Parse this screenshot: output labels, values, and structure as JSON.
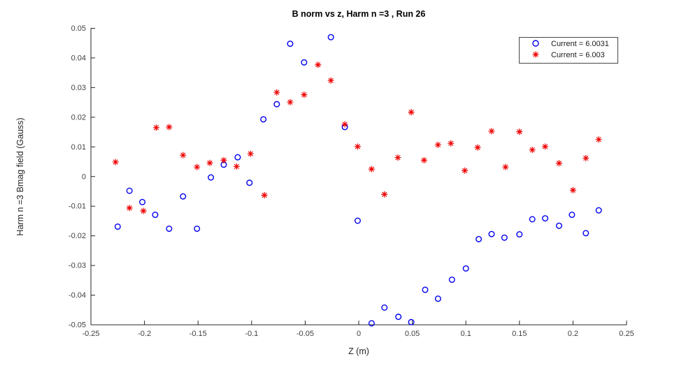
{
  "window": {
    "background": "#ffffff"
  },
  "chart_data": {
    "type": "scatter",
    "title": "B norm vs z, Harm n =3 , Run 26",
    "xlabel": "Z (m)",
    "ylabel": "Harm n =3 Bmag field (Gauss)",
    "xlim": [
      -0.25,
      0.25
    ],
    "ylim": [
      -0.05,
      0.05
    ],
    "grid": false,
    "legend_position": "top-right",
    "axis_color": "#262626",
    "xticks": [
      {
        "value": -0.25,
        "label": "-0.25"
      },
      {
        "value": -0.2,
        "label": "-0.2"
      },
      {
        "value": -0.15,
        "label": "-0.15"
      },
      {
        "value": -0.1,
        "label": "-0.1"
      },
      {
        "value": -0.05,
        "label": "-0.05"
      },
      {
        "value": 0,
        "label": "0"
      },
      {
        "value": 0.05,
        "label": "0.05"
      },
      {
        "value": 0.1,
        "label": "0.1"
      },
      {
        "value": 0.15,
        "label": "0.15"
      },
      {
        "value": 0.2,
        "label": "0.2"
      },
      {
        "value": 0.25,
        "label": "0.25"
      }
    ],
    "yticks": [
      {
        "value": -0.05,
        "label": "-0.05"
      },
      {
        "value": -0.04,
        "label": "-0.04"
      },
      {
        "value": -0.03,
        "label": "-0.03"
      },
      {
        "value": -0.02,
        "label": "-0.02"
      },
      {
        "value": -0.01,
        "label": "-0.01"
      },
      {
        "value": 0,
        "label": "0"
      },
      {
        "value": 0.01,
        "label": "0.01"
      },
      {
        "value": 0.02,
        "label": "0.02"
      },
      {
        "value": 0.03,
        "label": "0.03"
      },
      {
        "value": 0.04,
        "label": "0.04"
      },
      {
        "value": 0.05,
        "label": "0.05"
      }
    ],
    "series": [
      {
        "name": "Current = 6.0031",
        "marker": "circle",
        "color": "#0000EE",
        "points": [
          [
            -0.225,
            -0.0169
          ],
          [
            -0.214,
            -0.0048
          ],
          [
            -0.202,
            -0.0086
          ],
          [
            -0.19,
            -0.0129
          ],
          [
            -0.177,
            -0.0176
          ],
          [
            -0.164,
            -0.0067
          ],
          [
            -0.151,
            -0.0176
          ],
          [
            -0.138,
            -0.0003
          ],
          [
            -0.126,
            0.004
          ],
          [
            -0.113,
            0.0065
          ],
          [
            -0.102,
            -0.0021
          ],
          [
            -0.089,
            0.0193
          ],
          [
            -0.0765,
            0.0244
          ],
          [
            -0.064,
            0.0448
          ],
          [
            -0.051,
            0.0385
          ],
          [
            -0.026,
            0.047
          ],
          [
            -0.013,
            0.0167
          ],
          [
            -0.001,
            -0.0149
          ],
          [
            0.012,
            -0.0495
          ],
          [
            0.024,
            -0.0442
          ],
          [
            0.037,
            -0.0473
          ],
          [
            0.049,
            -0.0491
          ],
          [
            0.062,
            -0.0382
          ],
          [
            0.074,
            -0.0412
          ],
          [
            0.087,
            -0.0348
          ],
          [
            0.1,
            -0.031
          ],
          [
            0.112,
            -0.0211
          ],
          [
            0.124,
            -0.0194
          ],
          [
            0.136,
            -0.0206
          ],
          [
            0.15,
            -0.0195
          ],
          [
            0.162,
            -0.0144
          ],
          [
            0.174,
            -0.0141
          ],
          [
            0.187,
            -0.0166
          ],
          [
            0.199,
            -0.0129
          ],
          [
            0.212,
            -0.0191
          ],
          [
            0.224,
            -0.0114
          ]
        ]
      },
      {
        "name": "Current = 6.003",
        "marker": "asterisk",
        "color": "#EE0000",
        "points": [
          [
            -0.227,
            0.0049
          ],
          [
            -0.214,
            -0.0106
          ],
          [
            -0.201,
            -0.0116
          ],
          [
            -0.189,
            0.0165
          ],
          [
            -0.177,
            0.0167
          ],
          [
            -0.164,
            0.0072
          ],
          [
            -0.151,
            0.0032
          ],
          [
            -0.139,
            0.0046
          ],
          [
            -0.126,
            0.0055
          ],
          [
            -0.114,
            0.0034
          ],
          [
            -0.101,
            0.0077
          ],
          [
            -0.088,
            -0.0063
          ],
          [
            -0.0765,
            0.0284
          ],
          [
            -0.064,
            0.0251
          ],
          [
            -0.051,
            0.0276
          ],
          [
            -0.038,
            0.0377
          ],
          [
            -0.026,
            0.0324
          ],
          [
            -0.013,
            0.0176
          ],
          [
            -0.001,
            0.0101
          ],
          [
            0.012,
            0.0025
          ],
          [
            0.024,
            -0.006
          ],
          [
            0.0365,
            0.0064
          ],
          [
            0.049,
            0.0217
          ],
          [
            0.061,
            0.0055
          ],
          [
            0.074,
            0.0107
          ],
          [
            0.086,
            0.0112
          ],
          [
            0.099,
            0.002
          ],
          [
            0.111,
            0.0098
          ],
          [
            0.124,
            0.0153
          ],
          [
            0.137,
            0.0032
          ],
          [
            0.15,
            0.0151
          ],
          [
            0.162,
            0.009
          ],
          [
            0.174,
            0.0101
          ],
          [
            0.187,
            0.0045
          ],
          [
            0.2,
            -0.0046
          ],
          [
            0.212,
            0.0062
          ],
          [
            0.224,
            0.0125
          ]
        ]
      }
    ]
  }
}
